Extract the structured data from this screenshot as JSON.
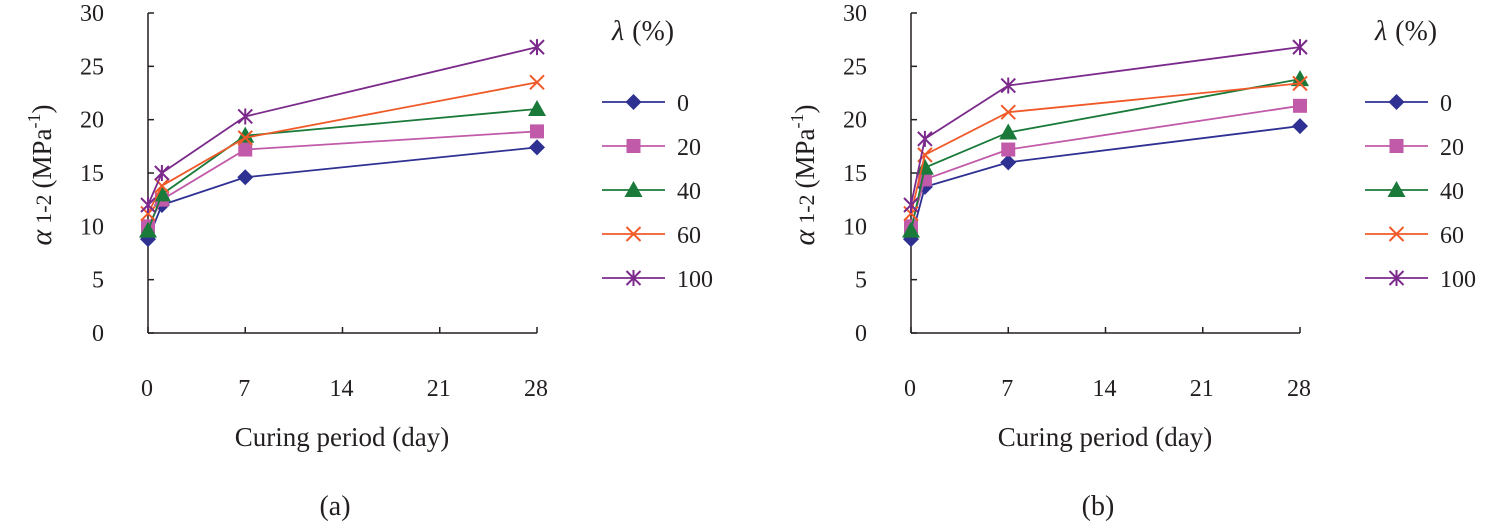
{
  "chart_data": [
    {
      "type": "line",
      "panel_label": "(a)",
      "xlabel": "Curing period (day)",
      "ylabel_symbol": "α",
      "ylabel_subscript": "1-2",
      "ylabel_unit_pre": "(MPa",
      "ylabel_unit_sup": "-1",
      "ylabel_unit_post": ")",
      "xlim": [
        0,
        28
      ],
      "ylim": [
        0,
        30
      ],
      "xticks": [
        0,
        7,
        14,
        21,
        28
      ],
      "yticks": [
        0,
        5,
        10,
        15,
        20,
        25,
        30
      ],
      "legend_title_symbol": "λ",
      "legend_title_unit": "(%)",
      "x": [
        0,
        1,
        7,
        28
      ],
      "series": [
        {
          "name": "0",
          "marker": "diamond",
          "color": "#2e3192",
          "values": [
            8.8,
            12.0,
            14.6,
            17.4
          ]
        },
        {
          "name": "20",
          "marker": "square",
          "color": "#c15aa8",
          "values": [
            10.0,
            12.5,
            17.2,
            18.9
          ]
        },
        {
          "name": "40",
          "marker": "triangle",
          "color": "#1a7a3a",
          "values": [
            9.6,
            13.0,
            18.5,
            21.0
          ]
        },
        {
          "name": "60",
          "marker": "x",
          "color": "#f05a28",
          "values": [
            11.2,
            13.8,
            18.3,
            23.5
          ]
        },
        {
          "name": "100",
          "marker": "star",
          "color": "#7b2a8b",
          "values": [
            12.0,
            15.0,
            20.3,
            26.8
          ]
        }
      ]
    },
    {
      "type": "line",
      "panel_label": "(b)",
      "xlabel": "Curing period (day)",
      "ylabel_symbol": "α",
      "ylabel_subscript": "1-2",
      "ylabel_unit_pre": "(MPa",
      "ylabel_unit_sup": "-1",
      "ylabel_unit_post": ")",
      "xlim": [
        0,
        28
      ],
      "ylim": [
        0,
        30
      ],
      "xticks": [
        0,
        7,
        14,
        21,
        28
      ],
      "yticks": [
        0,
        5,
        10,
        15,
        20,
        25,
        30
      ],
      "legend_title_symbol": "λ",
      "legend_title_unit": "(%)",
      "x": [
        0,
        1,
        7,
        28
      ],
      "series": [
        {
          "name": "0",
          "marker": "diamond",
          "color": "#2e3192",
          "values": [
            8.8,
            13.7,
            16.0,
            19.4
          ]
        },
        {
          "name": "20",
          "marker": "square",
          "color": "#c15aa8",
          "values": [
            10.0,
            14.4,
            17.2,
            21.3
          ]
        },
        {
          "name": "40",
          "marker": "triangle",
          "color": "#1a7a3a",
          "values": [
            9.6,
            15.5,
            18.8,
            23.8
          ]
        },
        {
          "name": "60",
          "marker": "x",
          "color": "#f05a28",
          "values": [
            11.2,
            16.7,
            20.7,
            23.4
          ]
        },
        {
          "name": "100",
          "marker": "star",
          "color": "#7b2a8b",
          "values": [
            12.0,
            18.2,
            23.2,
            26.8
          ]
        }
      ]
    }
  ]
}
